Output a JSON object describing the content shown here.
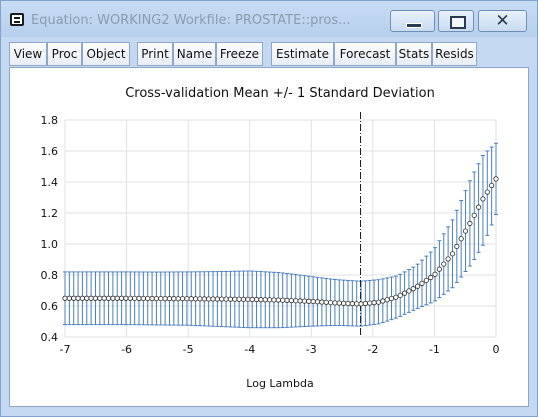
{
  "window": {
    "title": "Equation: WORKING2   Workfile: PROSTATE::pros...",
    "icon": "equation-window-icon",
    "controls": {
      "minimize": "minimize-icon",
      "maximize": "maximize-icon",
      "close": "close-icon",
      "close_glyph": "✕"
    }
  },
  "toolbar": {
    "buttons": [
      "View",
      "Proc",
      "Object",
      "Print",
      "Name",
      "Freeze",
      "Estimate",
      "Forecast",
      "Stats",
      "Resids"
    ]
  },
  "chart_data": {
    "type": "scatter",
    "title": "Cross-validation Mean +/- 1 Standard Deviation",
    "xlabel": "Log Lambda",
    "ylabel": "",
    "xlim": [
      -7,
      0
    ],
    "ylim": [
      0.4,
      1.8
    ],
    "xticks": [
      "-7",
      "-6",
      "-5",
      "-4",
      "-3",
      "-2",
      "-1",
      "0"
    ],
    "yticks": [
      "0.4",
      "0.6",
      "0.8",
      "1.0",
      "1.2",
      "1.4",
      "1.6",
      "1.8"
    ],
    "grid": true,
    "legend": "none",
    "vline": {
      "x": -2.2,
      "style": "dash-dot"
    },
    "series": [
      {
        "points": [
          {
            "x": -7.0,
            "y": 0.65,
            "low": 0.48,
            "high": 0.82
          },
          {
            "x": -6.5,
            "y": 0.65,
            "low": 0.48,
            "high": 0.82
          },
          {
            "x": -6.0,
            "y": 0.65,
            "low": 0.48,
            "high": 0.82
          },
          {
            "x": -5.5,
            "y": 0.648,
            "low": 0.478,
            "high": 0.819
          },
          {
            "x": -5.0,
            "y": 0.647,
            "low": 0.476,
            "high": 0.82
          },
          {
            "x": -4.5,
            "y": 0.645,
            "low": 0.468,
            "high": 0.822
          },
          {
            "x": -4.0,
            "y": 0.643,
            "low": 0.46,
            "high": 0.826
          },
          {
            "x": -3.5,
            "y": 0.638,
            "low": 0.46,
            "high": 0.815
          },
          {
            "x": -3.0,
            "y": 0.63,
            "low": 0.47,
            "high": 0.79
          },
          {
            "x": -2.6,
            "y": 0.62,
            "low": 0.475,
            "high": 0.77
          },
          {
            "x": -2.2,
            "y": 0.613,
            "low": 0.47,
            "high": 0.76
          },
          {
            "x": -1.9,
            "y": 0.625,
            "low": 0.485,
            "high": 0.77
          },
          {
            "x": -1.6,
            "y": 0.66,
            "low": 0.525,
            "high": 0.795
          },
          {
            "x": -1.3,
            "y": 0.72,
            "low": 0.58,
            "high": 0.86
          },
          {
            "x": -1.0,
            "y": 0.8,
            "low": 0.63,
            "high": 0.97
          },
          {
            "x": -0.7,
            "y": 0.94,
            "low": 0.72,
            "high": 1.16
          },
          {
            "x": -0.4,
            "y": 1.15,
            "low": 0.87,
            "high": 1.43
          },
          {
            "x": -0.2,
            "y": 1.3,
            "low": 1.0,
            "high": 1.58
          },
          {
            "x": 0.0,
            "y": 1.42,
            "low": 1.19,
            "high": 1.65
          }
        ]
      }
    ]
  },
  "colors": {
    "errorbar": "#4a7fbf",
    "marker_edge": "#2a2a2a",
    "grid": "#e2e2e2",
    "vline": "#1a1a1a"
  }
}
